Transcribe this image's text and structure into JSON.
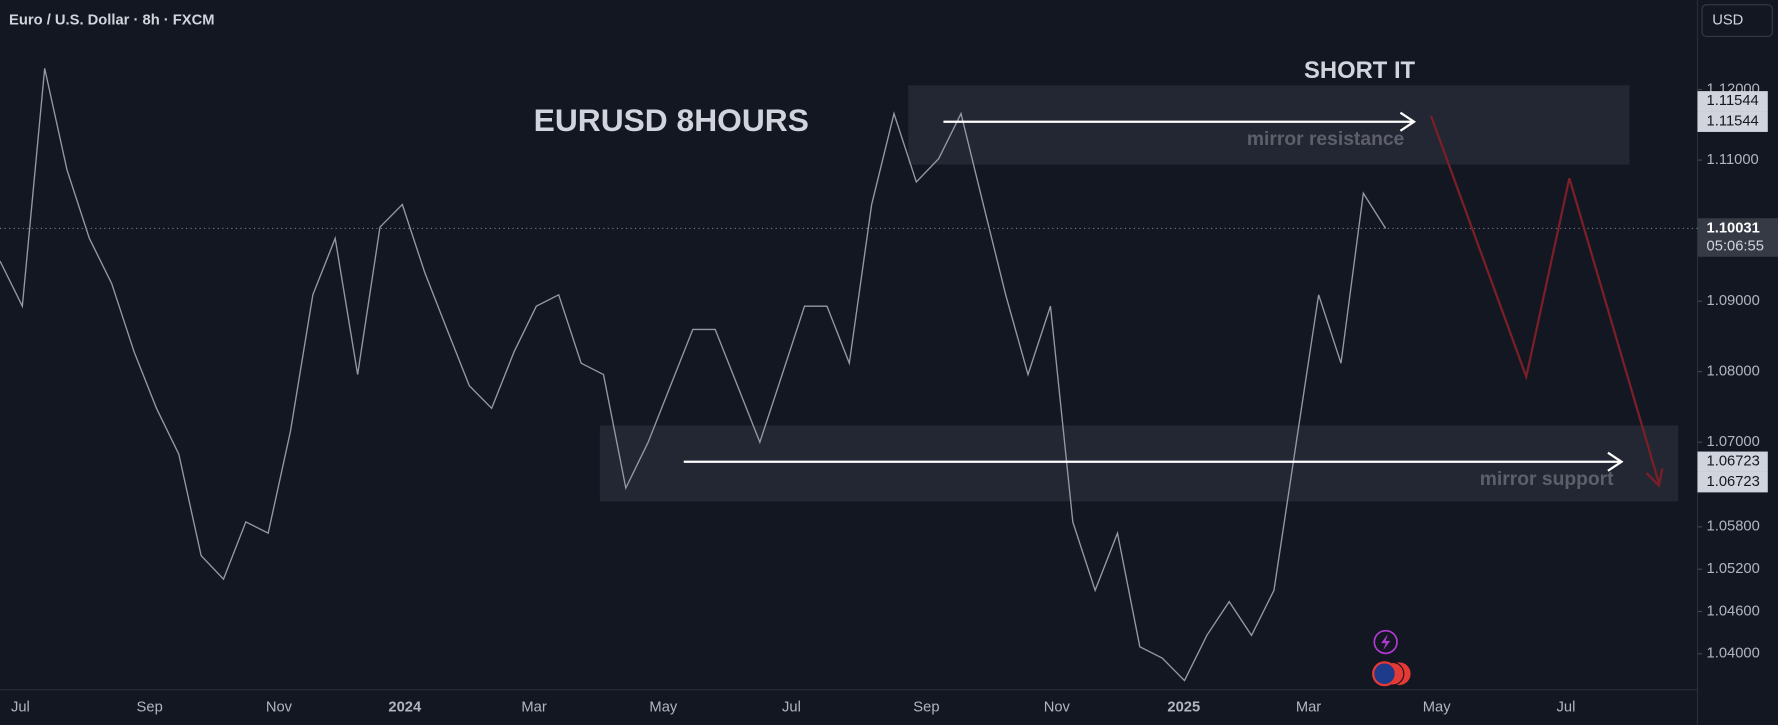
{
  "header": {
    "symbol": "Euro / U.S. Dollar · 8h · FXCM",
    "currency": "USD"
  },
  "chart": {
    "price_scale": {
      "ylim": [
        1.03492,
        1.13267
      ],
      "ticks": [
        {
          "value": 1.12,
          "label": "1.12000"
        },
        {
          "value": 1.11,
          "label": "1.11000"
        },
        {
          "value": 1.09,
          "label": "1.09000"
        },
        {
          "value": 1.08,
          "label": "1.08000"
        },
        {
          "value": 1.07,
          "label": "1.07000"
        },
        {
          "value": 1.058,
          "label": "1.05800"
        },
        {
          "value": 1.052,
          "label": "1.05200"
        },
        {
          "value": 1.046,
          "label": "1.04600"
        },
        {
          "value": 1.04,
          "label": "1.04000"
        }
      ]
    },
    "time_labels": [
      "Jul",
      "Sep",
      "Nov",
      "2024",
      "Mar",
      "May",
      "Jul",
      "Sep",
      "Nov",
      "2025",
      "Mar",
      "May",
      "Jul"
    ],
    "price_line": [
      1.0957,
      1.0893,
      1.123,
      1.1086,
      1.0989,
      1.0925,
      1.0828,
      1.0748,
      1.0683,
      1.0539,
      1.0506,
      1.0587,
      1.0571,
      1.0716,
      1.0909,
      1.0989,
      1.0796,
      1.1005,
      1.1037,
      1.0941,
      1.086,
      1.078,
      1.0748,
      1.0828,
      1.0893,
      1.0909,
      1.0812,
      1.0796,
      1.0635,
      1.07,
      1.078,
      1.086,
      1.086,
      1.078,
      1.07,
      1.0796,
      1.0893,
      1.0893,
      1.0812,
      1.1037,
      1.1166,
      1.1069,
      1.1102,
      1.1166,
      1.1037,
      1.0909,
      1.0796,
      1.0893,
      1.0587,
      1.049,
      1.0571,
      1.041,
      1.0394,
      1.0362,
      1.0426,
      1.0474,
      1.0426,
      1.049,
      1.07,
      1.0909,
      1.0812,
      1.1053,
      1.10031
    ],
    "last_price": {
      "value": 1.10031,
      "label": "1.10031",
      "countdown": "05:06:55"
    },
    "resistance": {
      "value": 1.11544,
      "labels": [
        "1.11544",
        "1.11544"
      ],
      "text": "mirror resistance"
    },
    "support": {
      "value": 1.06723,
      "labels": [
        "1.06723",
        "1.06723"
      ],
      "text": "mirror support"
    },
    "annotations": {
      "title": "EURUSD 8HOURS",
      "call": "SHORT IT"
    }
  }
}
